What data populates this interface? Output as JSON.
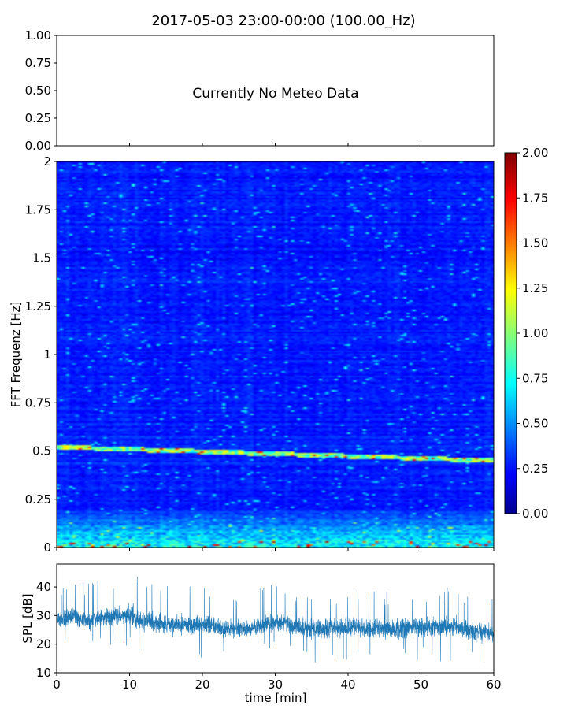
{
  "title": "2017-05-03 23:00-00:00 (100.00_Hz)",
  "chart_data": [
    {
      "id": "meteo",
      "type": "text-panel",
      "message": "Currently No Meteo Data",
      "ylim": [
        0,
        1
      ],
      "yticks": [
        "0.00",
        "0.25",
        "0.50",
        "0.75",
        "1.00"
      ],
      "xlim": [
        0,
        60
      ]
    },
    {
      "id": "spectrogram",
      "type": "heatmap",
      "ylabel": "FFT Frequenz [Hz]",
      "xlim": [
        0,
        60
      ],
      "ylim": [
        0,
        2
      ],
      "yticks": [
        "0",
        "0.25",
        "0.5",
        "0.75",
        "1",
        "1.25",
        "1.5",
        "1.75",
        "2"
      ],
      "colorbar": {
        "cmap": "jet",
        "range": [
          0,
          2
        ],
        "ticks": [
          "0.00",
          "0.25",
          "0.50",
          "0.75",
          "1.00",
          "1.25",
          "1.50",
          "1.75",
          "2.00"
        ]
      },
      "background_level": 0.3,
      "features": [
        {
          "kind": "low-frequency band",
          "freq_range": [
            0,
            0.2
          ],
          "typical_level": 0.8,
          "peak_level": 1.9
        },
        {
          "kind": "tonal line",
          "freq_start": 0.52,
          "freq_end": 0.45,
          "typical_level": 1.0,
          "peak_level": 1.8
        }
      ]
    },
    {
      "id": "spl",
      "type": "line",
      "ylabel": "SPL [dB]",
      "xlabel": "time [min]",
      "xlim": [
        0,
        60
      ],
      "ylim": [
        10,
        48
      ],
      "yticks": [
        10,
        20,
        30,
        40
      ],
      "xticks": [
        0,
        10,
        20,
        30,
        40,
        50,
        60
      ],
      "color": "#1f77b4",
      "envelope": {
        "x": [
          0,
          2,
          4,
          6,
          8,
          10,
          12,
          15,
          20,
          25,
          28,
          30,
          32,
          35,
          40,
          45,
          50,
          55,
          58,
          60
        ],
        "median": [
          28,
          30,
          28,
          29,
          30,
          30,
          28,
          27,
          27,
          25,
          26,
          28,
          27,
          25,
          26,
          25,
          26,
          26,
          24,
          24
        ],
        "low": [
          22,
          24,
          22,
          23,
          24,
          24,
          21,
          20,
          20,
          19,
          20,
          21,
          20,
          18,
          19,
          18,
          19,
          19,
          17,
          17
        ],
        "high": [
          35,
          38,
          36,
          37,
          38,
          40,
          36,
          35,
          34,
          32,
          34,
          37,
          35,
          33,
          34,
          33,
          35,
          34,
          32,
          32
        ]
      }
    }
  ]
}
